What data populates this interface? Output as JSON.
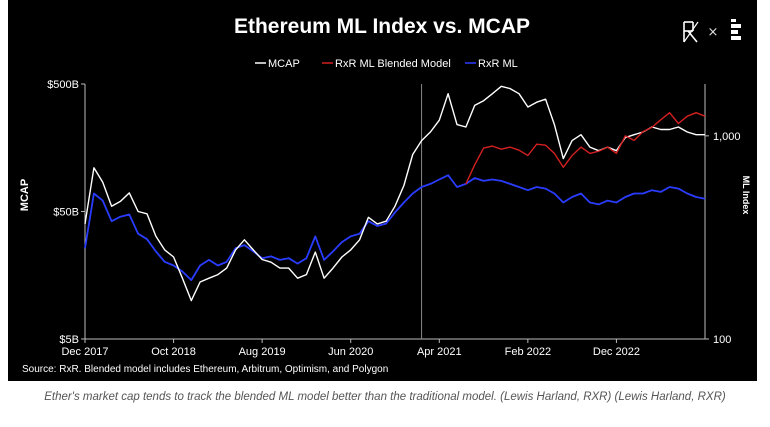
{
  "logos": {
    "left_logo": "RxR",
    "separator": "×"
  },
  "caption": "Ether's market cap tends to track the blended ML model better than the traditional model. (Lewis Harland, RXR) (Lewis Harland, RXR)",
  "chart_data": {
    "type": "line",
    "title": "Ethereum ML Index vs. MCAP",
    "source_note": "Source: RxR. Blended model includes Ethereum, Arbitrum, Optimism, and Polygon",
    "ylabel": "MCAP",
    "y2label": "ML Index",
    "y_scale": "log",
    "y2_scale": "log",
    "ylim": [
      5,
      500
    ],
    "y_ticks": [
      {
        "value": 5,
        "label": "$5B"
      },
      {
        "value": 50,
        "label": "$50B"
      },
      {
        "value": 500,
        "label": "$500B"
      }
    ],
    "y2lim": [
      100,
      1800
    ],
    "y2_ticks": [
      {
        "value": 100,
        "label": "100"
      },
      {
        "value": 1000,
        "label": "1,000"
      }
    ],
    "xlim": [
      "2017-12",
      "2023-10"
    ],
    "x_ticks": [
      {
        "value": "2017-12",
        "label": "Dec 2017"
      },
      {
        "value": "2018-10",
        "label": "Oct 2018"
      },
      {
        "value": "2019-08",
        "label": "Aug 2019"
      },
      {
        "value": "2020-06",
        "label": "Jun 2020"
      },
      {
        "value": "2021-04",
        "label": "Apr 2021"
      },
      {
        "value": "2022-02",
        "label": "Feb 2022"
      },
      {
        "value": "2022-12",
        "label": "Dec 2022"
      }
    ],
    "vline": "2021-02",
    "grid": false,
    "legend_position": "top-center",
    "colors": {
      "MCAP": "#ffffff",
      "RxR ML Blended Model": "#d42020",
      "RxR ML": "#2a3cff"
    },
    "series": [
      {
        "name": "MCAP",
        "axis": "left",
        "x": [
          "2017-12",
          "2018-01",
          "2018-02",
          "2018-03",
          "2018-04",
          "2018-05",
          "2018-06",
          "2018-07",
          "2018-08",
          "2018-09",
          "2018-10",
          "2018-11",
          "2018-12",
          "2019-01",
          "2019-02",
          "2019-03",
          "2019-04",
          "2019-05",
          "2019-06",
          "2019-07",
          "2019-08",
          "2019-09",
          "2019-10",
          "2019-11",
          "2019-12",
          "2020-01",
          "2020-02",
          "2020-03",
          "2020-04",
          "2020-05",
          "2020-06",
          "2020-07",
          "2020-08",
          "2020-09",
          "2020-10",
          "2020-11",
          "2020-12",
          "2021-01",
          "2021-02",
          "2021-03",
          "2021-04",
          "2021-05",
          "2021-06",
          "2021-07",
          "2021-08",
          "2021-09",
          "2021-10",
          "2021-11",
          "2021-12",
          "2022-01",
          "2022-02",
          "2022-03",
          "2022-04",
          "2022-05",
          "2022-06",
          "2022-07",
          "2022-08",
          "2022-09",
          "2022-10",
          "2022-11",
          "2022-12",
          "2023-01",
          "2023-02",
          "2023-03",
          "2023-04",
          "2023-05",
          "2023-06",
          "2023-07",
          "2023-08",
          "2023-09",
          "2023-10"
        ],
        "values": [
          40,
          110,
          85,
          55,
          60,
          70,
          50,
          48,
          32,
          25,
          22,
          15,
          10,
          14,
          15,
          16,
          18,
          25,
          30,
          25,
          21,
          20,
          18,
          18,
          15,
          16,
          24,
          15,
          18,
          22,
          25,
          30,
          45,
          40,
          42,
          55,
          80,
          140,
          180,
          210,
          260,
          420,
          240,
          230,
          340,
          370,
          420,
          480,
          460,
          420,
          330,
          360,
          380,
          240,
          130,
          180,
          200,
          160,
          150,
          160,
          150,
          190,
          200,
          210,
          230,
          220,
          220,
          230,
          210,
          200,
          200
        ]
      },
      {
        "name": "RxR ML Blended Model",
        "axis": "right",
        "x": [
          "2021-07",
          "2021-08",
          "2021-09",
          "2021-10",
          "2021-11",
          "2021-12",
          "2022-01",
          "2022-02",
          "2022-03",
          "2022-04",
          "2022-05",
          "2022-06",
          "2022-07",
          "2022-08",
          "2022-09",
          "2022-10",
          "2022-11",
          "2022-12",
          "2023-01",
          "2023-02",
          "2023-03",
          "2023-04",
          "2023-05",
          "2023-06",
          "2023-07",
          "2023-08",
          "2023-09",
          "2023-10"
        ],
        "values": [
          580,
          720,
          870,
          890,
          860,
          880,
          850,
          800,
          910,
          900,
          820,
          700,
          800,
          880,
          820,
          840,
          880,
          820,
          1000,
          950,
          1050,
          1100,
          1200,
          1300,
          1150,
          1250,
          1300,
          1250
        ]
      },
      {
        "name": "RxR ML",
        "axis": "right",
        "x": [
          "2017-12",
          "2018-01",
          "2018-02",
          "2018-03",
          "2018-04",
          "2018-05",
          "2018-06",
          "2018-07",
          "2018-08",
          "2018-09",
          "2018-10",
          "2018-11",
          "2018-12",
          "2019-01",
          "2019-02",
          "2019-03",
          "2019-04",
          "2019-05",
          "2019-06",
          "2019-07",
          "2019-08",
          "2019-09",
          "2019-10",
          "2019-11",
          "2019-12",
          "2020-01",
          "2020-02",
          "2020-03",
          "2020-04",
          "2020-05",
          "2020-06",
          "2020-07",
          "2020-08",
          "2020-09",
          "2020-10",
          "2020-11",
          "2020-12",
          "2021-01",
          "2021-02",
          "2021-03",
          "2021-04",
          "2021-05",
          "2021-06",
          "2021-07",
          "2021-08",
          "2021-09",
          "2021-10",
          "2021-11",
          "2021-12",
          "2022-01",
          "2022-02",
          "2022-03",
          "2022-04",
          "2022-05",
          "2022-06",
          "2022-07",
          "2022-08",
          "2022-09",
          "2022-10",
          "2022-11",
          "2022-12",
          "2023-01",
          "2023-02",
          "2023-03",
          "2023-04",
          "2023-05",
          "2023-06",
          "2023-07",
          "2023-08",
          "2023-09",
          "2023-10"
        ],
        "values": [
          280,
          520,
          480,
          380,
          400,
          410,
          330,
          310,
          270,
          240,
          230,
          215,
          195,
          230,
          245,
          230,
          240,
          280,
          290,
          270,
          250,
          255,
          245,
          250,
          235,
          250,
          320,
          245,
          270,
          300,
          320,
          330,
          380,
          360,
          370,
          420,
          470,
          520,
          560,
          580,
          610,
          640,
          560,
          580,
          620,
          600,
          610,
          600,
          580,
          560,
          540,
          560,
          550,
          520,
          470,
          500,
          520,
          470,
          460,
          480,
          470,
          500,
          520,
          520,
          540,
          530,
          560,
          550,
          520,
          500,
          490
        ]
      }
    ]
  }
}
